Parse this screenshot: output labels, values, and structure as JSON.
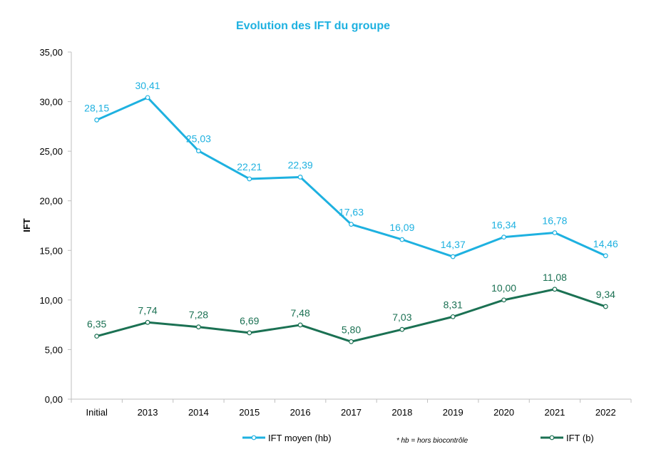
{
  "chart_data": {
    "type": "line",
    "title": "Evolution des IFT du groupe",
    "xlabel": "",
    "ylabel": "IFT",
    "ylim": [
      0,
      35
    ],
    "ytick_step": 5,
    "ytick_labels": [
      "0,00",
      "5,00",
      "10,00",
      "15,00",
      "20,00",
      "25,00",
      "30,00",
      "35,00"
    ],
    "grid": false,
    "legend_position": "bottom",
    "categories": [
      "Initial",
      "2013",
      "2014",
      "2015",
      "2016",
      "2017",
      "2018",
      "2019",
      "2020",
      "2021",
      "2022"
    ],
    "series": [
      {
        "name": "IFT moyen (hb)",
        "color": "#1EB1E0",
        "values": [
          28.15,
          30.41,
          25.03,
          22.21,
          22.39,
          17.63,
          16.09,
          14.37,
          16.34,
          16.78,
          14.46
        ],
        "labels": [
          "28,15",
          "30,41",
          "25,03",
          "22,21",
          "22,39",
          "17,63",
          "16,09",
          "14,37",
          "16,34",
          "16,78",
          "14,46"
        ]
      },
      {
        "name": "IFT (b)",
        "color": "#1B7153",
        "values": [
          6.35,
          7.74,
          7.28,
          6.69,
          7.48,
          5.8,
          7.03,
          8.31,
          10.0,
          11.08,
          9.34
        ],
        "labels": [
          "6,35",
          "7,74",
          "7,28",
          "6,69",
          "7,48",
          "5,80",
          "7,03",
          "8,31",
          "10,00",
          "11,08",
          "9,34"
        ]
      }
    ],
    "annotation": "* hb = hors biocontrôle",
    "title_color": "#1EB1E0"
  }
}
